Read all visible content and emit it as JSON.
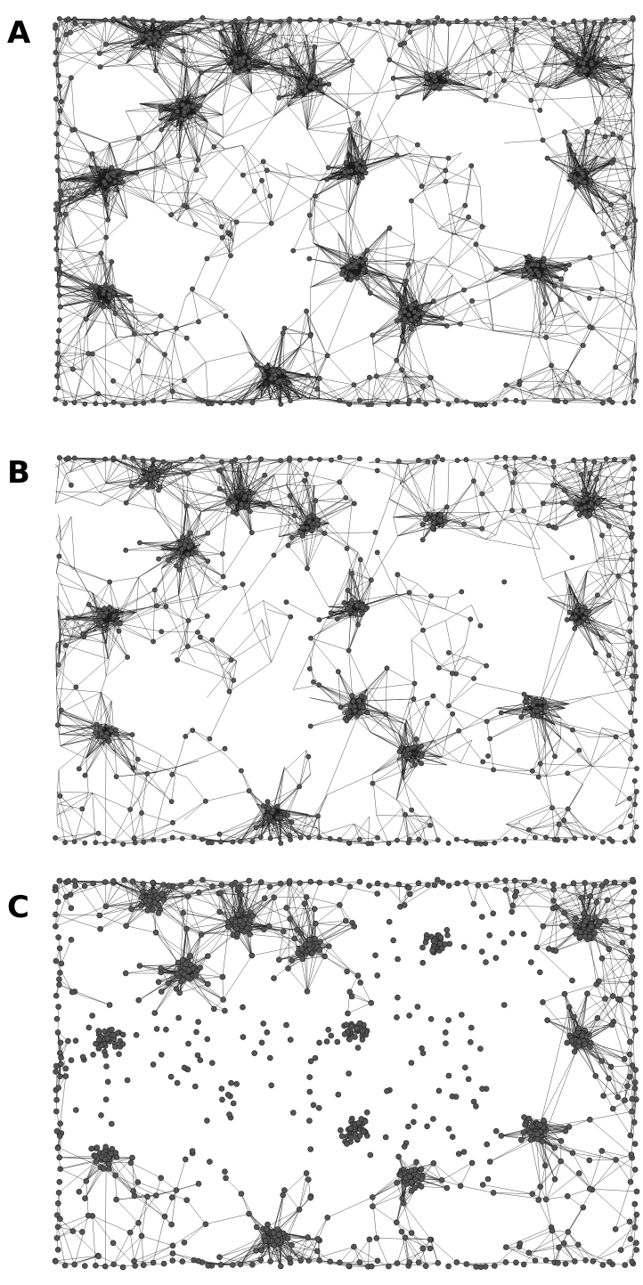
{
  "figure": {
    "panels": [
      {
        "label": "A",
        "edge_density": "high"
      },
      {
        "label": "B",
        "edge_density": "medium"
      },
      {
        "label": "C",
        "edge_density": "low"
      }
    ]
  },
  "colors": {
    "node_fill": "#555555",
    "node_stroke": "#222222",
    "edge": "#1a1a1a",
    "background": "#ffffff"
  }
}
